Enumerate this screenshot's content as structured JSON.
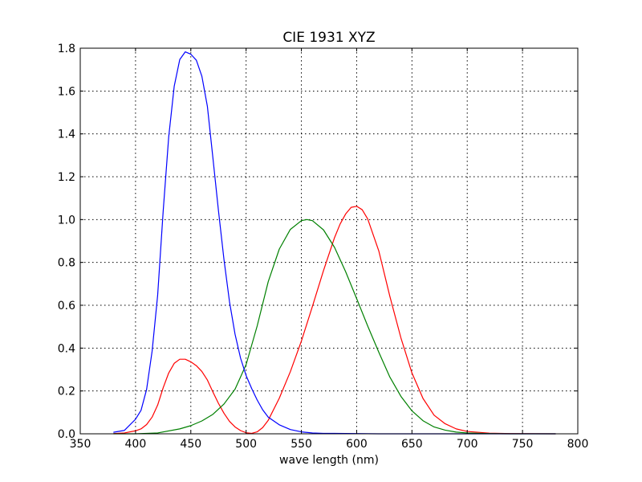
{
  "chart_data": {
    "type": "line",
    "title": "CIE 1931 XYZ",
    "xlabel": "wave length (nm)",
    "ylabel": "",
    "xlim": [
      350,
      800
    ],
    "ylim": [
      0,
      1.8
    ],
    "x_ticks": [
      350,
      400,
      450,
      500,
      550,
      600,
      650,
      700,
      750,
      800
    ],
    "y_ticks": [
      0.0,
      0.2,
      0.4,
      0.6,
      0.8,
      1.0,
      1.2,
      1.4,
      1.6,
      1.8
    ],
    "x_tick_labels": [
      "350",
      "400",
      "450",
      "500",
      "550",
      "600",
      "650",
      "700",
      "750",
      "800"
    ],
    "y_tick_labels": [
      "0.0",
      "0.2",
      "0.4",
      "0.6",
      "0.8",
      "1.0",
      "1.2",
      "1.4",
      "1.6",
      "1.8"
    ],
    "grid": true,
    "series": [
      {
        "color": "#ff0000",
        "points": [
          [
            380,
            0.001
          ],
          [
            390,
            0.004
          ],
          [
            400,
            0.014
          ],
          [
            405,
            0.023
          ],
          [
            410,
            0.043
          ],
          [
            415,
            0.078
          ],
          [
            420,
            0.134
          ],
          [
            425,
            0.215
          ],
          [
            430,
            0.284
          ],
          [
            435,
            0.329
          ],
          [
            440,
            0.348
          ],
          [
            445,
            0.348
          ],
          [
            450,
            0.336
          ],
          [
            455,
            0.318
          ],
          [
            460,
            0.291
          ],
          [
            465,
            0.251
          ],
          [
            470,
            0.195
          ],
          [
            475,
            0.142
          ],
          [
            480,
            0.096
          ],
          [
            485,
            0.058
          ],
          [
            490,
            0.032
          ],
          [
            495,
            0.015
          ],
          [
            500,
            0.005
          ],
          [
            505,
            0.002
          ],
          [
            510,
            0.009
          ],
          [
            515,
            0.029
          ],
          [
            520,
            0.063
          ],
          [
            530,
            0.166
          ],
          [
            540,
            0.29
          ],
          [
            550,
            0.433
          ],
          [
            560,
            0.595
          ],
          [
            570,
            0.762
          ],
          [
            580,
            0.916
          ],
          [
            585,
            0.979
          ],
          [
            590,
            1.026
          ],
          [
            595,
            1.057
          ],
          [
            600,
            1.062
          ],
          [
            605,
            1.046
          ],
          [
            610,
            1.003
          ],
          [
            620,
            0.854
          ],
          [
            630,
            0.642
          ],
          [
            640,
            0.448
          ],
          [
            650,
            0.284
          ],
          [
            660,
            0.165
          ],
          [
            670,
            0.087
          ],
          [
            680,
            0.047
          ],
          [
            690,
            0.023
          ],
          [
            700,
            0.011
          ],
          [
            720,
            0.003
          ],
          [
            740,
            0.001
          ],
          [
            780,
            0.0
          ]
        ]
      },
      {
        "color": "#008000",
        "points": [
          [
            380,
            0.0
          ],
          [
            400,
            0.0
          ],
          [
            420,
            0.004
          ],
          [
            440,
            0.023
          ],
          [
            450,
            0.038
          ],
          [
            460,
            0.06
          ],
          [
            470,
            0.091
          ],
          [
            480,
            0.139
          ],
          [
            490,
            0.208
          ],
          [
            500,
            0.323
          ],
          [
            510,
            0.503
          ],
          [
            520,
            0.71
          ],
          [
            530,
            0.862
          ],
          [
            540,
            0.954
          ],
          [
            550,
            0.995
          ],
          [
            555,
            1.0
          ],
          [
            560,
            0.995
          ],
          [
            570,
            0.952
          ],
          [
            580,
            0.87
          ],
          [
            590,
            0.757
          ],
          [
            600,
            0.631
          ],
          [
            610,
            0.503
          ],
          [
            620,
            0.381
          ],
          [
            630,
            0.265
          ],
          [
            640,
            0.175
          ],
          [
            650,
            0.107
          ],
          [
            660,
            0.061
          ],
          [
            670,
            0.032
          ],
          [
            680,
            0.017
          ],
          [
            690,
            0.008
          ],
          [
            700,
            0.004
          ],
          [
            720,
            0.001
          ],
          [
            740,
            0.0
          ],
          [
            780,
            0.0
          ]
        ]
      },
      {
        "color": "#0000ff",
        "points": [
          [
            380,
            0.007
          ],
          [
            390,
            0.016
          ],
          [
            400,
            0.068
          ],
          [
            405,
            0.11
          ],
          [
            410,
            0.207
          ],
          [
            415,
            0.386
          ],
          [
            420,
            0.646
          ],
          [
            425,
            1.039
          ],
          [
            430,
            1.386
          ],
          [
            435,
            1.623
          ],
          [
            440,
            1.747
          ],
          [
            445,
            1.783
          ],
          [
            450,
            1.772
          ],
          [
            455,
            1.744
          ],
          [
            460,
            1.669
          ],
          [
            465,
            1.528
          ],
          [
            470,
            1.287
          ],
          [
            475,
            1.042
          ],
          [
            480,
            0.813
          ],
          [
            485,
            0.616
          ],
          [
            490,
            0.465
          ],
          [
            495,
            0.353
          ],
          [
            500,
            0.272
          ],
          [
            505,
            0.212
          ],
          [
            510,
            0.158
          ],
          [
            515,
            0.112
          ],
          [
            520,
            0.078
          ],
          [
            530,
            0.042
          ],
          [
            540,
            0.02
          ],
          [
            550,
            0.009
          ],
          [
            560,
            0.004
          ],
          [
            570,
            0.002
          ],
          [
            580,
            0.002
          ],
          [
            600,
            0.001
          ],
          [
            620,
            0.0
          ],
          [
            780,
            0.0
          ]
        ]
      }
    ]
  }
}
